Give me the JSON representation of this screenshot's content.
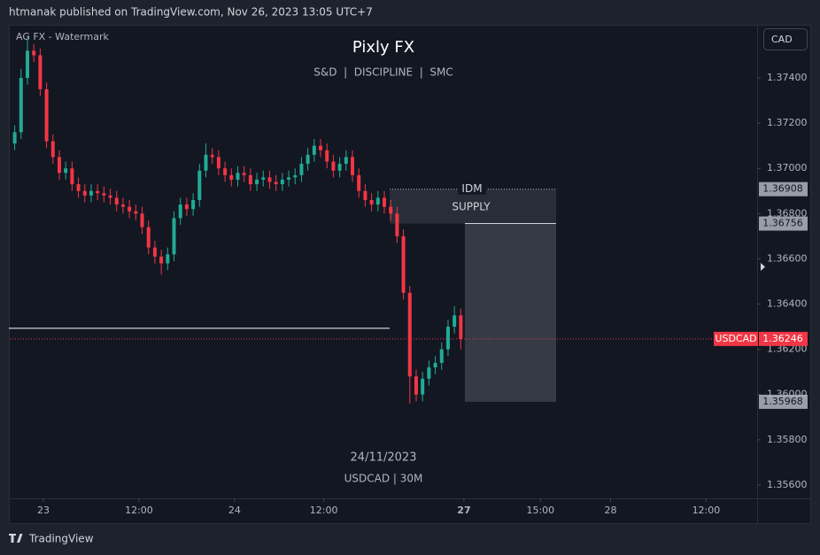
{
  "header": {
    "published": "htmanak published on TradingView.com, Nov 26, 2023 13:05 UTC+7"
  },
  "footer": {
    "brand": "TradingView"
  },
  "chart_data": {
    "type": "candlestick",
    "title": "Pixly FX",
    "subtitle": "S&D  |  DISCIPLINE  |  SMC",
    "watermark": "AG FX - Watermark",
    "date": "24/11/2023",
    "symbol_interval": "USDCAD | 30M",
    "currency": "CAD",
    "up_color": "#22ab94",
    "down_color": "#f23645",
    "open": [
      1.3711,
      1.3716,
      1.374,
      1.3752,
      1.375,
      1.3735,
      1.3712,
      1.3705,
      1.3698,
      1.37,
      1.3693,
      1.369,
      1.3688,
      1.369,
      1.3689,
      1.3688,
      1.3687,
      1.3684,
      1.3683,
      1.3681,
      1.368,
      1.3674,
      1.3665,
      1.3661,
      1.3658,
      1.3662,
      1.3678,
      1.3684,
      1.3682,
      1.3686,
      1.3699,
      1.3706,
      1.3705,
      1.37,
      1.3697,
      1.3695,
      1.3698,
      1.3697,
      1.3693,
      1.3695,
      1.3696,
      1.3694,
      1.3693,
      1.3695,
      1.3696,
      1.3697,
      1.3702,
      1.3706,
      1.371,
      1.3708,
      1.3703,
      1.3699,
      1.3702,
      1.3705,
      1.3697,
      1.369,
      1.3686,
      1.3684,
      1.3687,
      1.3683,
      1.368,
      1.367,
      1.3645,
      1.3608,
      1.36,
      1.3607,
      1.3612,
      1.3614,
      1.362,
      1.363,
      1.3635
    ],
    "high": [
      1.3719,
      1.3744,
      1.3758,
      1.3755,
      1.3753,
      1.3738,
      1.3715,
      1.3708,
      1.3703,
      1.3703,
      1.3696,
      1.3693,
      1.3693,
      1.3693,
      1.3692,
      1.3691,
      1.369,
      1.3687,
      1.3686,
      1.3684,
      1.3683,
      1.3677,
      1.3668,
      1.3664,
      1.3665,
      1.3681,
      1.3687,
      1.3687,
      1.3689,
      1.3702,
      1.3711,
      1.3709,
      1.3708,
      1.3703,
      1.37,
      1.3701,
      1.3701,
      1.37,
      1.3698,
      1.3699,
      1.3699,
      1.3697,
      1.3698,
      1.3699,
      1.37,
      1.3705,
      1.3709,
      1.3713,
      1.3713,
      1.3711,
      1.3706,
      1.3705,
      1.3708,
      1.3708,
      1.37,
      1.3693,
      1.3689,
      1.369,
      1.369,
      1.3686,
      1.3683,
      1.3673,
      1.3648,
      1.3611,
      1.361,
      1.3615,
      1.3617,
      1.3623,
      1.3633,
      1.3639,
      1.3638
    ],
    "low": [
      1.3708,
      1.3713,
      1.3737,
      1.3747,
      1.3732,
      1.3709,
      1.3702,
      1.3695,
      1.3695,
      1.369,
      1.3687,
      1.3685,
      1.3685,
      1.3686,
      1.3685,
      1.3684,
      1.3681,
      1.368,
      1.3678,
      1.3677,
      1.3671,
      1.3662,
      1.3658,
      1.3653,
      1.3655,
      1.3659,
      1.3675,
      1.3679,
      1.3679,
      1.3683,
      1.3696,
      1.3702,
      1.3697,
      1.3694,
      1.3692,
      1.3692,
      1.3694,
      1.369,
      1.369,
      1.3692,
      1.3691,
      1.369,
      1.369,
      1.3692,
      1.3693,
      1.3694,
      1.3699,
      1.3703,
      1.3705,
      1.37,
      1.3696,
      1.3696,
      1.3699,
      1.3694,
      1.3687,
      1.3683,
      1.3681,
      1.3681,
      1.368,
      1.3677,
      1.3667,
      1.3642,
      1.3596,
      1.3597,
      1.3597,
      1.3604,
      1.3609,
      1.3611,
      1.3617,
      1.3627,
      1.362
    ],
    "close": [
      1.3716,
      1.374,
      1.3752,
      1.375,
      1.3735,
      1.3712,
      1.3705,
      1.3698,
      1.37,
      1.3693,
      1.369,
      1.3688,
      1.369,
      1.3689,
      1.3688,
      1.3687,
      1.3684,
      1.3683,
      1.3681,
      1.368,
      1.3674,
      1.3665,
      1.3661,
      1.3658,
      1.3662,
      1.3678,
      1.3684,
      1.3682,
      1.3686,
      1.3699,
      1.3706,
      1.3705,
      1.37,
      1.3697,
      1.3695,
      1.3698,
      1.3697,
      1.3693,
      1.3695,
      1.3696,
      1.3694,
      1.3693,
      1.3695,
      1.3696,
      1.3697,
      1.3702,
      1.3706,
      1.371,
      1.3708,
      1.3703,
      1.3699,
      1.3702,
      1.3705,
      1.3697,
      1.369,
      1.3686,
      1.3684,
      1.3687,
      1.3683,
      1.368,
      1.367,
      1.3645,
      1.3608,
      1.36,
      1.3607,
      1.3612,
      1.3614,
      1.362,
      1.363,
      1.3635,
      1.36246
    ],
    "xlim": [
      0,
      117
    ],
    "xticks": [
      {
        "value": 5,
        "label": "23"
      },
      {
        "value": 20,
        "label": "12:00"
      },
      {
        "value": 35,
        "label": "24"
      },
      {
        "value": 49,
        "label": "12:00"
      },
      {
        "value": 71,
        "label": "27"
      },
      {
        "value": 83,
        "label": "15:00"
      },
      {
        "value": 94,
        "label": "28"
      },
      {
        "value": 109,
        "label": "12:00"
      }
    ],
    "ylim": [
      1.35541,
      1.37627
    ],
    "yticks": [
      {
        "value": 1.356,
        "label": "1.35600"
      },
      {
        "value": 1.358,
        "label": "1.35800"
      },
      {
        "value": 1.36,
        "label": "1.36000"
      },
      {
        "value": 1.362,
        "label": "1.36200"
      },
      {
        "value": 1.364,
        "label": "1.36400"
      },
      {
        "value": 1.366,
        "label": "1.36600"
      },
      {
        "value": 1.368,
        "label": "1.36800"
      },
      {
        "value": 1.37,
        "label": "1.37000"
      },
      {
        "value": 1.372,
        "label": "1.37200"
      },
      {
        "value": 1.374,
        "label": "1.37400"
      }
    ],
    "zone": {
      "marker": "IDM",
      "name": "SUPPLY",
      "top": 1.36908,
      "bottom": 1.36756
    },
    "target_box": {
      "bottom": 1.35968
    },
    "level_line": 1.36293,
    "current": {
      "symbol": "USDCAD",
      "price": 1.36246
    }
  }
}
